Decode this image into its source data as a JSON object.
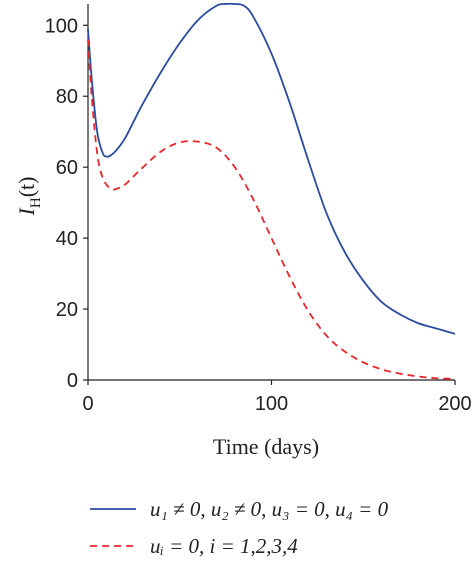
{
  "chart_data": {
    "type": "line",
    "xlabel": "Time (days)",
    "ylabel_main": "I",
    "ylabel_sub": "H",
    "ylabel_arg": "(t)",
    "xlim": [
      0,
      200
    ],
    "ylim": [
      0,
      106
    ],
    "x_ticks": [
      0,
      100,
      200
    ],
    "y_ticks": [
      0,
      20,
      40,
      60,
      80,
      100
    ],
    "grid": false,
    "legend_position": "bottom",
    "series": [
      {
        "name": "u₁ ≠ 0, u₂ ≠ 0, u₃ = 0, u₄ = 0",
        "color": "#2b4ba0",
        "dash": "solid",
        "x": [
          0,
          2,
          5,
          8,
          10,
          12,
          15,
          20,
          25,
          30,
          40,
          50,
          60,
          70,
          75,
          80,
          85,
          90,
          100,
          110,
          120,
          130,
          140,
          150,
          160,
          170,
          180,
          190,
          200
        ],
        "y": [
          99,
          85,
          70,
          64,
          63,
          63.2,
          64.5,
          68,
          73,
          78,
          87,
          95,
          101.5,
          105.5,
          106.3,
          106.5,
          105.5,
          102.5,
          92,
          78,
          62,
          47,
          36,
          28,
          22,
          18.5,
          16,
          14.5,
          13
        ]
      },
      {
        "name": "uᵢ = 0, i = 1,2,3,4",
        "color": "#e8262c",
        "dash": "dashed",
        "x": [
          0,
          2,
          5,
          8,
          12,
          15,
          20,
          25,
          30,
          40,
          50,
          60,
          70,
          80,
          90,
          100,
          110,
          120,
          130,
          140,
          150,
          160,
          170,
          180,
          190,
          200
        ],
        "y": [
          96,
          80,
          64,
          57,
          54,
          53.8,
          55,
          57.5,
          60,
          64.5,
          67,
          67.2,
          65.5,
          60,
          51,
          40,
          29,
          19.5,
          12.5,
          8,
          5,
          3,
          1.8,
          1,
          0.5,
          0.3
        ]
      }
    ]
  },
  "legend": {
    "items": [
      {
        "label": "u₁ ≠ 0, u₂ ≠ 0, u₃ = 0, u₄ = 0"
      },
      {
        "label": "uᵢ = 0, i = 1,2,3,4"
      }
    ]
  }
}
